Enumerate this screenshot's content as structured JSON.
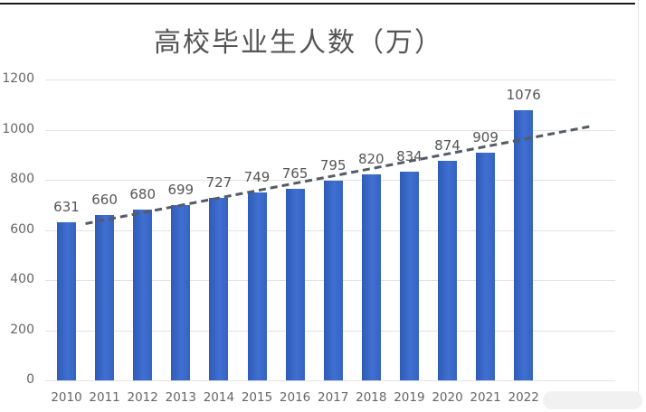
{
  "title": "高校毕业生人数（万）",
  "chart_data": {
    "type": "bar",
    "title": "高校毕业生人数（万）",
    "xlabel": "",
    "ylabel": "",
    "ylim": [
      0,
      1200
    ],
    "yticks": [
      "0",
      "200",
      "400",
      "600",
      "800",
      "1000",
      "1200"
    ],
    "grid": true,
    "legend": "none",
    "categories": [
      "2010",
      "2011",
      "2012",
      "2013",
      "2014",
      "2015",
      "2016",
      "2017",
      "2018",
      "2019",
      "2020",
      "2021",
      "2022"
    ],
    "values": [
      631,
      660,
      680,
      699,
      727,
      749,
      765,
      795,
      820,
      834,
      874,
      909,
      1076
    ],
    "data_labels": [
      "631",
      "660",
      "680",
      "699",
      "727",
      "749",
      "765",
      "795",
      "820",
      "834",
      "874",
      "909",
      "1076"
    ],
    "trendline": {
      "type": "linear",
      "style": "dashed",
      "color": "#555b66"
    },
    "bar_color": "#3563c1"
  }
}
